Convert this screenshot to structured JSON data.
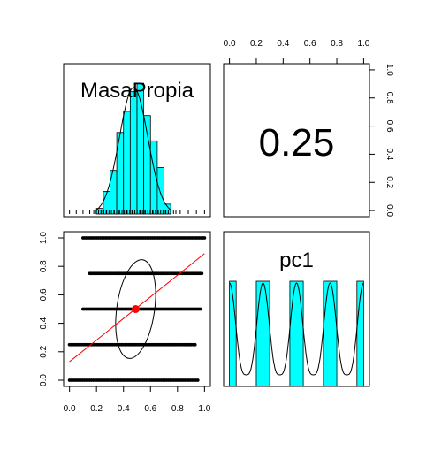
{
  "chart_data": {
    "type": "scatter-matrix",
    "variables": [
      "MasaPropia",
      "pc1"
    ],
    "correlation": "0.25",
    "colors": {
      "histogram_fill": "#00ffff",
      "regression": "#ff0000",
      "center": "#ff0000",
      "points": "#000000"
    },
    "axes": {
      "top_right_x_ticks": [
        "0.0",
        "0.2",
        "0.4",
        "0.6",
        "0.8",
        "1.0"
      ],
      "top_right_y_ticks": [
        "0.0",
        "0.2",
        "0.4",
        "0.6",
        "0.8",
        "1.0"
      ],
      "bottom_left_x_ticks": [
        "0.0",
        "0.2",
        "0.4",
        "0.6",
        "0.8",
        "1.0"
      ],
      "bottom_left_y_ticks": [
        "0.0",
        "0.2",
        "0.4",
        "0.6",
        "0.8",
        "1.0"
      ],
      "xlim": [
        0,
        1
      ],
      "ylim": [
        0,
        1
      ]
    },
    "masapropia_histogram": {
      "bin_starts": [
        0.2,
        0.25,
        0.3,
        0.35,
        0.4,
        0.45,
        0.5,
        0.55,
        0.6,
        0.65,
        0.7
      ],
      "bin_width": 0.05,
      "heights": [
        0.04,
        0.16,
        0.31,
        0.58,
        0.73,
        0.87,
        0.93,
        0.7,
        0.52,
        0.33,
        0.07
      ]
    },
    "pc1_histogram": {
      "bins": [
        [
          0.0,
          0.05
        ],
        [
          0.2,
          0.3
        ],
        [
          0.45,
          0.55
        ],
        [
          0.7,
          0.8
        ],
        [
          0.95,
          1.0
        ]
      ],
      "height": 0.68
    },
    "scatter": {
      "y_levels": [
        0,
        0.25,
        0.5,
        0.75,
        1.0
      ],
      "x_ranges": [
        [
          0.0,
          0.95
        ],
        [
          0.0,
          0.93
        ],
        [
          0.1,
          0.97
        ],
        [
          0.15,
          0.98
        ],
        [
          0.1,
          1.0
        ]
      ],
      "center": [
        0.49,
        0.5
      ],
      "regression": {
        "intercept": 0.13,
        "slope": 0.76
      },
      "ellipse": {
        "x_center": 0.49,
        "y_center": 0.5,
        "x_radius": 0.14,
        "y_radius": 0.35
      }
    }
  }
}
